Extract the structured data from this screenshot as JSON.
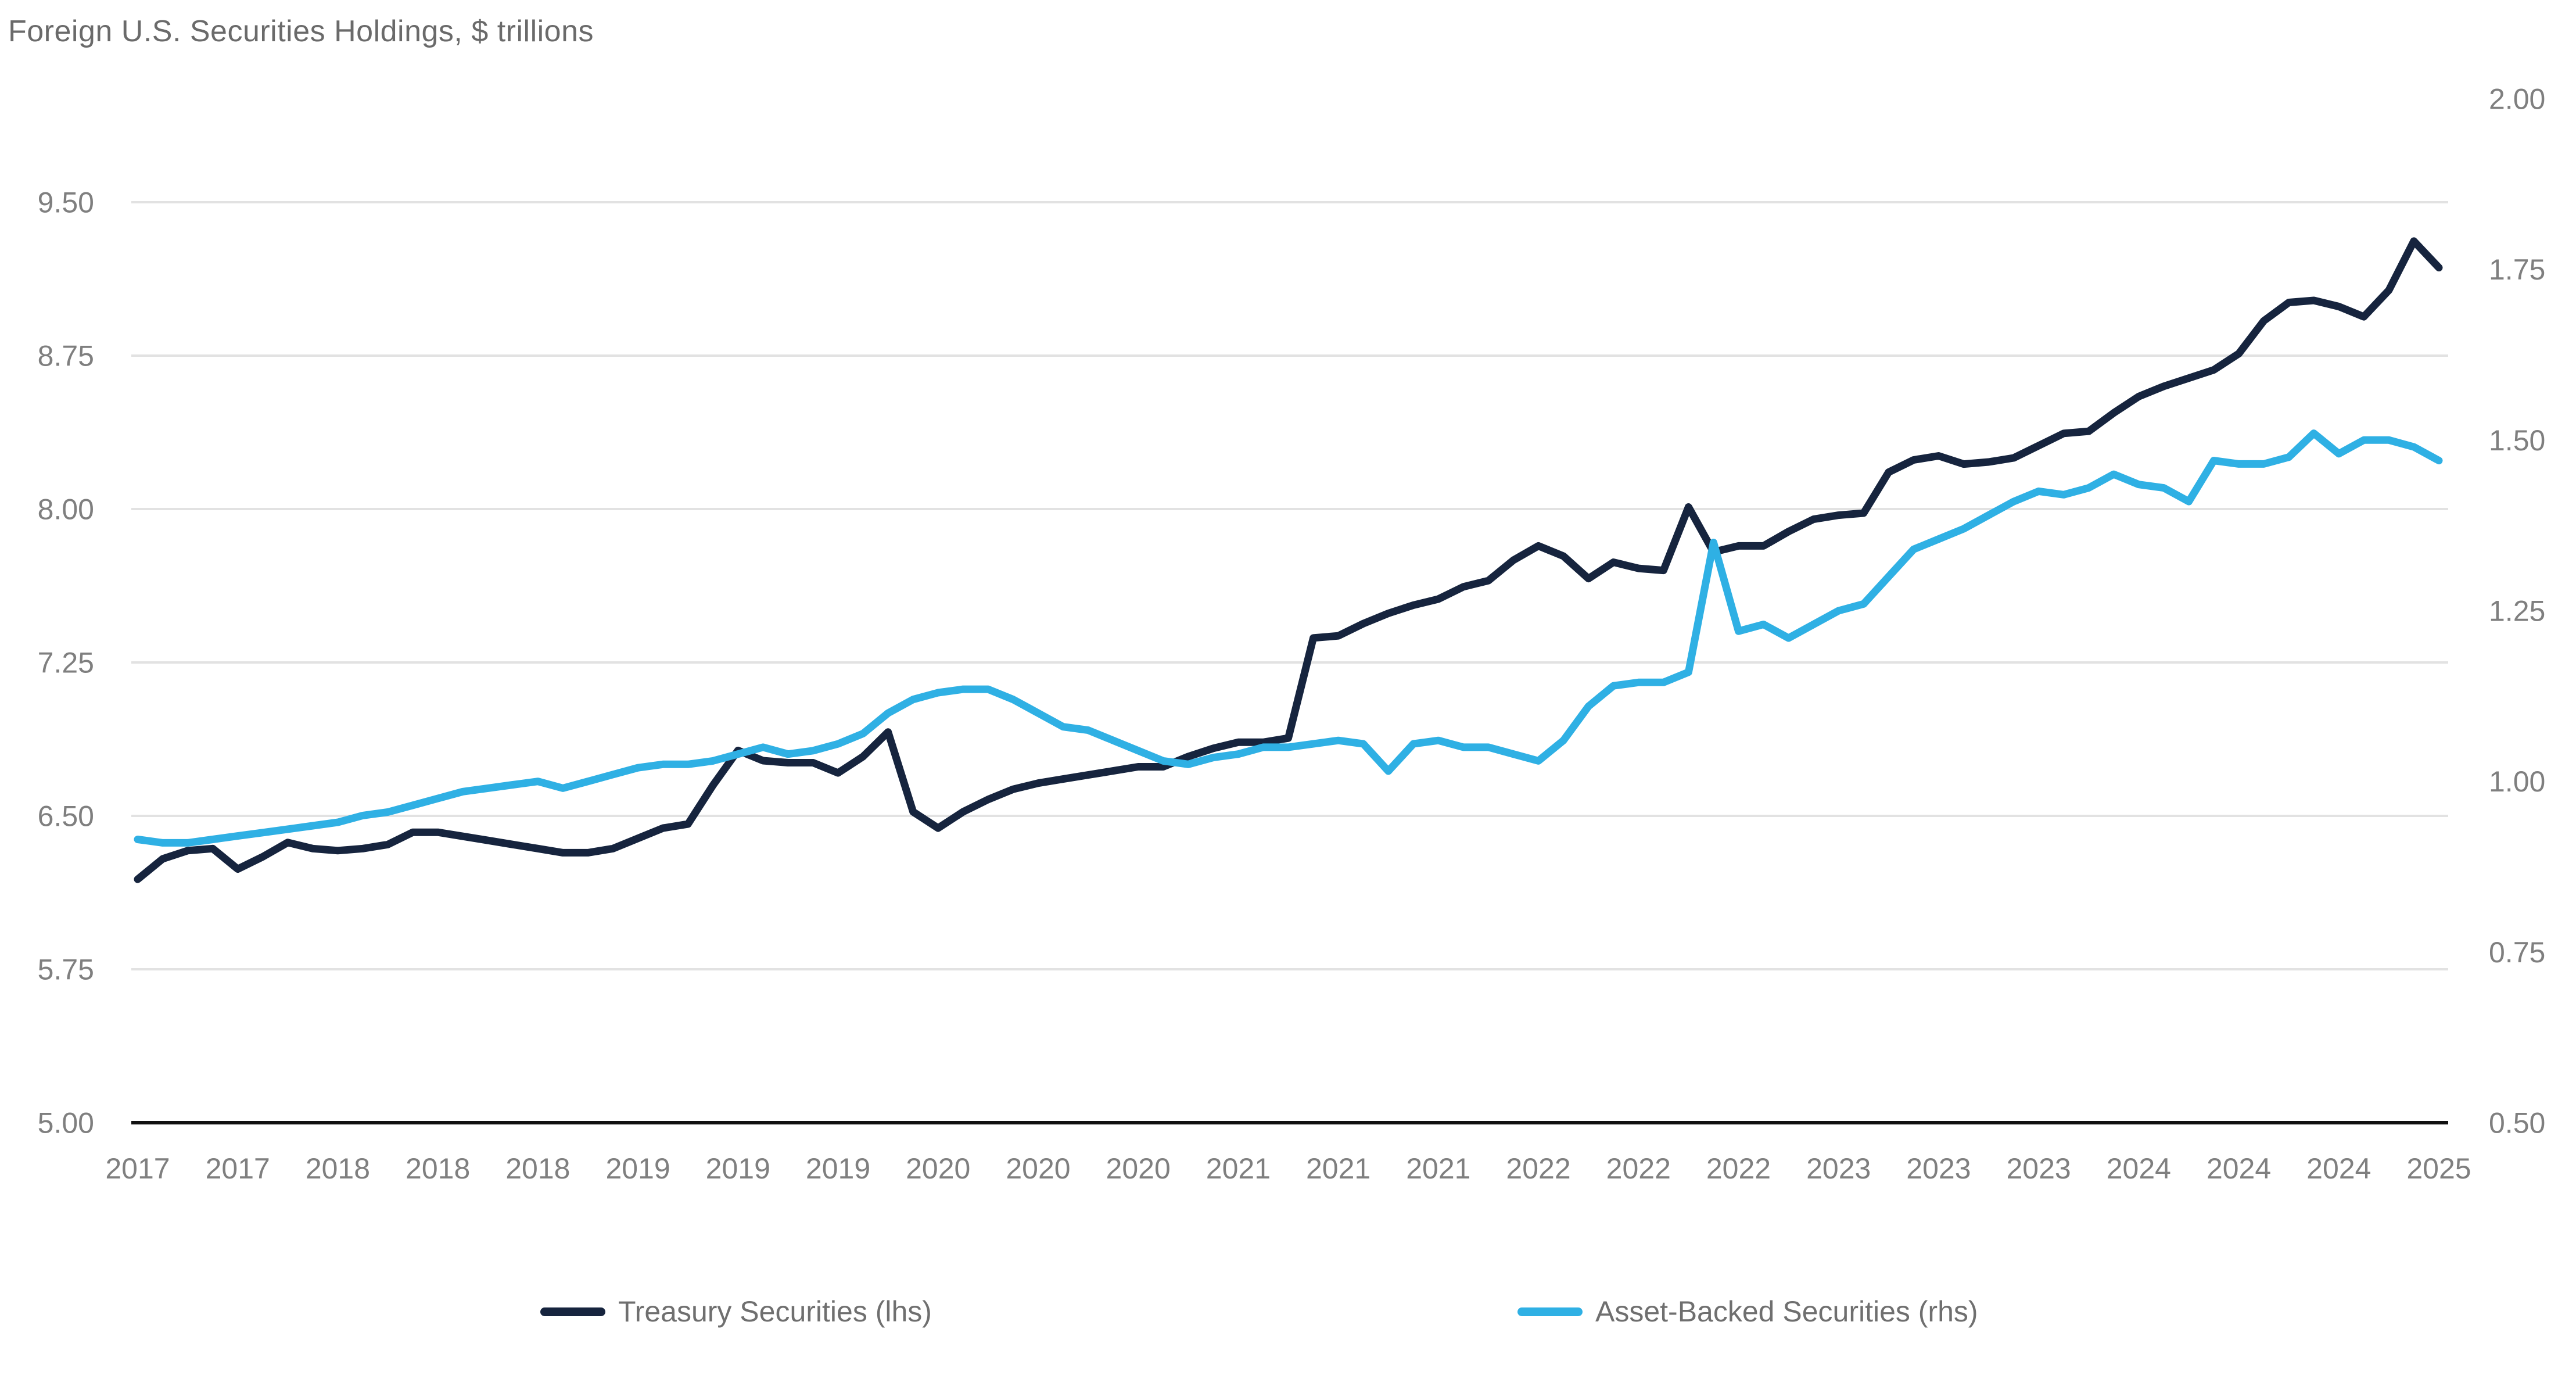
{
  "title": "Foreign U.S. Securities Holdings, $ trillions",
  "chart_data": {
    "type": "line",
    "title": "Foreign U.S. Securities Holdings, $ trillions",
    "grid": "horizontal-only",
    "legend_position": "bottom-center",
    "colors": {
      "gridline": "#e2e2e2",
      "axis_line": "#111111",
      "tick_label": "#7f7f7f",
      "title_text": "#6a6a6a",
      "legend_text": "#6f6f6f"
    },
    "x_tick_labels": [
      "2017",
      "2017",
      "2018",
      "2018",
      "2018",
      "2019",
      "2019",
      "2019",
      "2020",
      "2020",
      "2020",
      "2021",
      "2021",
      "2021",
      "2022",
      "2022",
      "2022",
      "2023",
      "2023",
      "2023",
      "2024",
      "2024",
      "2024",
      "2025"
    ],
    "x_ticks_every_n_points": 4,
    "left_axis": {
      "min": 5.0,
      "max": 9.5,
      "tick_labels": [
        "9.50",
        "8.75",
        "8.00",
        "7.25",
        "6.50",
        "5.75",
        "5.00"
      ]
    },
    "right_axis": {
      "min": 0.5,
      "max": 2.0,
      "tick_labels": [
        "2.00",
        "1.75",
        "1.50",
        "1.25",
        "1.00",
        "0.75",
        "0.50"
      ]
    },
    "series": [
      {
        "name": "Treasury Securities (lhs)",
        "axis": "left",
        "color": "#16243e",
        "values": [
          6.19,
          6.29,
          6.33,
          6.34,
          6.24,
          6.3,
          6.37,
          6.34,
          6.33,
          6.34,
          6.36,
          6.42,
          6.42,
          6.4,
          6.38,
          6.36,
          6.34,
          6.32,
          6.32,
          6.34,
          6.39,
          6.44,
          6.46,
          6.65,
          6.82,
          6.77,
          6.76,
          6.76,
          6.71,
          6.79,
          6.91,
          6.52,
          6.44,
          6.52,
          6.58,
          6.63,
          6.66,
          6.68,
          6.7,
          6.72,
          6.74,
          6.74,
          6.79,
          6.83,
          6.86,
          6.86,
          6.88,
          7.37,
          7.38,
          7.44,
          7.49,
          7.53,
          7.56,
          7.62,
          7.65,
          7.75,
          7.82,
          7.77,
          7.66,
          7.74,
          7.71,
          7.7,
          8.01,
          7.79,
          7.82,
          7.82,
          7.89,
          7.95,
          7.97,
          7.98,
          8.18,
          8.24,
          8.26,
          8.22,
          8.23,
          8.25,
          8.31,
          8.37,
          8.38,
          8.47,
          8.55,
          8.6,
          8.64,
          8.68,
          8.76,
          8.92,
          9.01,
          9.02,
          8.99,
          8.94,
          9.07,
          9.31,
          9.18
        ]
      },
      {
        "name": "Asset-Backed Securities (rhs)",
        "axis": "right",
        "color": "#2fb0e4",
        "values": [
          0.915,
          0.91,
          0.91,
          0.915,
          0.92,
          0.925,
          0.93,
          0.935,
          0.94,
          0.95,
          0.955,
          0.965,
          0.975,
          0.985,
          0.99,
          0.995,
          1.0,
          0.99,
          1.0,
          1.01,
          1.02,
          1.025,
          1.025,
          1.03,
          1.04,
          1.05,
          1.04,
          1.045,
          1.055,
          1.07,
          1.1,
          1.12,
          1.13,
          1.135,
          1.135,
          1.12,
          1.1,
          1.08,
          1.075,
          1.06,
          1.045,
          1.03,
          1.025,
          1.035,
          1.04,
          1.05,
          1.05,
          1.055,
          1.06,
          1.055,
          1.015,
          1.055,
          1.06,
          1.05,
          1.05,
          1.04,
          1.03,
          1.06,
          1.11,
          1.14,
          1.145,
          1.145,
          1.16,
          1.35,
          1.22,
          1.23,
          1.21,
          1.23,
          1.25,
          1.26,
          1.3,
          1.34,
          1.355,
          1.37,
          1.39,
          1.41,
          1.425,
          1.42,
          1.43,
          1.45,
          1.435,
          1.43,
          1.41,
          1.47,
          1.465,
          1.465,
          1.475,
          1.51,
          1.48,
          1.5,
          1.5,
          1.49,
          1.47
        ]
      }
    ]
  }
}
